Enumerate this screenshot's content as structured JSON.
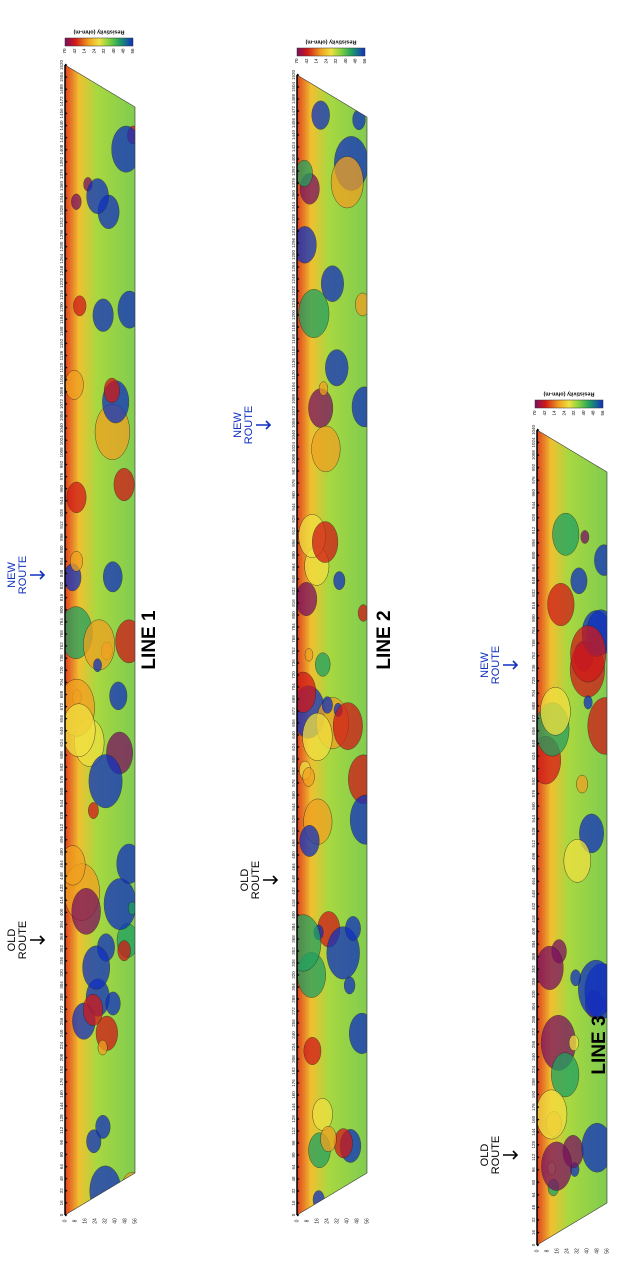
{
  "legend_title": "Resistivity (ohm-m)",
  "legend_ticks": [
    "70",
    "42",
    "14",
    "24",
    "32",
    "40",
    "48",
    "56"
  ],
  "depth_ticks": [
    "0",
    "8",
    "16",
    "24",
    "32",
    "40",
    "48",
    "56"
  ],
  "sections": [
    {
      "title": "LINE 1",
      "old_route": "OLD\nROUTE",
      "new_route": "NEW\nROUTE",
      "distance_ticks": [
        "0",
        "16",
        "32",
        "48",
        "64",
        "80",
        "96",
        "112",
        "128",
        "144",
        "160",
        "176",
        "192",
        "208",
        "224",
        "240",
        "256",
        "272",
        "288",
        "304",
        "320",
        "336",
        "352",
        "368",
        "384",
        "400",
        "416",
        "432",
        "448",
        "464",
        "480",
        "496",
        "512",
        "528",
        "544",
        "560",
        "576",
        "592",
        "608",
        "624",
        "640",
        "656",
        "672",
        "688",
        "704",
        "720",
        "736",
        "752",
        "768",
        "784",
        "800",
        "816",
        "832",
        "848",
        "864",
        "880",
        "896",
        "912",
        "928",
        "944",
        "960",
        "976",
        "992",
        "1008",
        "1024",
        "1040",
        "1056",
        "1072",
        "1088",
        "1104",
        "1120",
        "1136",
        "1152",
        "1168",
        "1184",
        "1200",
        "1216",
        "1232",
        "1248",
        "1264",
        "1280",
        "1296",
        "1312",
        "1328",
        "1344",
        "1360",
        "1376",
        "1392",
        "1408",
        "1424",
        "1440",
        "1456",
        "1472",
        "1488",
        "1504",
        "1520"
      ]
    },
    {
      "title": "LINE 2",
      "old_route": "OLD\nROUTE",
      "new_route": "NEW\nROUTE",
      "distance_ticks": [
        "0",
        "16",
        "32",
        "48",
        "64",
        "80",
        "96",
        "112",
        "128",
        "144",
        "160",
        "176",
        "192",
        "208",
        "224",
        "240",
        "256",
        "272",
        "288",
        "304",
        "320",
        "336",
        "352",
        "368",
        "384",
        "400",
        "416",
        "432",
        "448",
        "464",
        "480",
        "496",
        "512",
        "528",
        "544",
        "560",
        "576",
        "592",
        "608",
        "624",
        "640",
        "656",
        "672",
        "688",
        "704",
        "720",
        "736",
        "752",
        "768",
        "784",
        "800",
        "816",
        "832",
        "848",
        "864",
        "880",
        "896",
        "912",
        "928",
        "944",
        "960",
        "976",
        "992",
        "1008",
        "1024",
        "1040",
        "1056",
        "1072",
        "1088",
        "1104",
        "1120",
        "1136",
        "1152",
        "1168",
        "1184",
        "1200",
        "1216",
        "1232",
        "1248",
        "1264",
        "1280",
        "1296",
        "1312",
        "1328",
        "1344",
        "1360",
        "1376",
        "1392",
        "1408",
        "1424",
        "1440",
        "1456",
        "1472",
        "1488",
        "1504",
        "1520"
      ]
    },
    {
      "title": "LINE 3",
      "old_route": "OLD\nROUTE",
      "new_route": "NEW\nROUTE",
      "distance_ticks": [
        "0",
        "16",
        "32",
        "48",
        "64",
        "80",
        "96",
        "112",
        "128",
        "144",
        "160",
        "176",
        "192",
        "208",
        "224",
        "240",
        "256",
        "272",
        "288",
        "304",
        "320",
        "336",
        "352",
        "368",
        "384",
        "400",
        "416",
        "432",
        "448",
        "464",
        "480",
        "496",
        "512",
        "528",
        "544",
        "560",
        "576",
        "592",
        "608",
        "624",
        "640",
        "656",
        "672",
        "688",
        "704",
        "720",
        "736",
        "752",
        "768",
        "784",
        "800",
        "816",
        "832",
        "848",
        "864",
        "880",
        "896",
        "912",
        "928",
        "944",
        "960",
        "976",
        "992",
        "1008",
        "1024",
        "1040"
      ]
    }
  ]
}
